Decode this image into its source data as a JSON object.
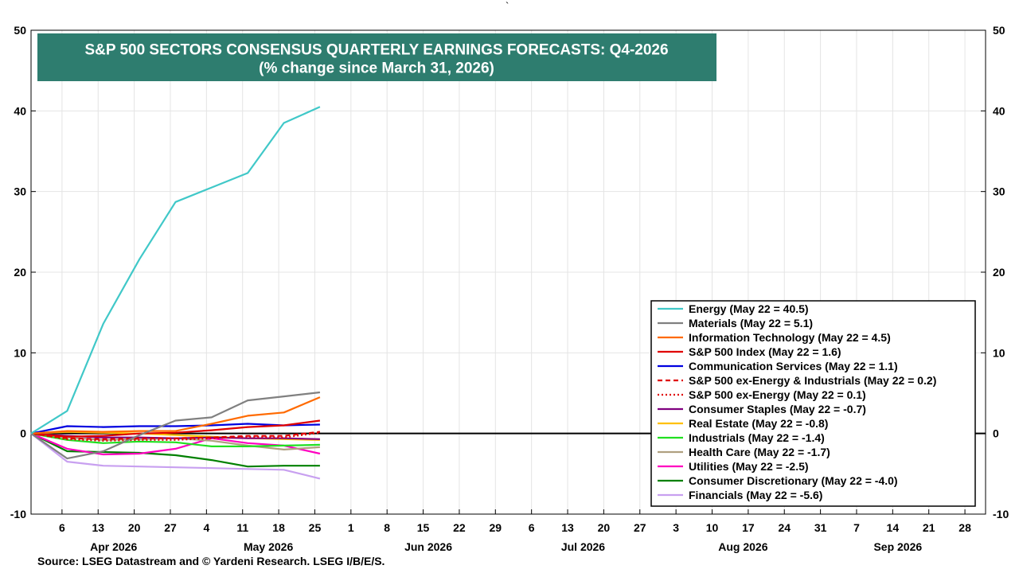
{
  "top_mark": "`",
  "source": "Source: LSEG Datastream and © Yardeni Research. LSEG I/B/E/S.",
  "chart_data": {
    "type": "line",
    "title": "S&P 500 SECTORS CONSENSUS QUARTERLY EARNINGS FORECASTS: Q4-2026",
    "subtitle": "(% change since March 31, 2026)",
    "xlabel": "",
    "ylabel": "",
    "ylim": [
      -10,
      50
    ],
    "yticks": [
      -10,
      0,
      10,
      20,
      30,
      40,
      50
    ],
    "xlim": [
      "2026-03-31",
      "2026-10-02"
    ],
    "x_tick_labels": [
      {
        "date": "2026-04-06",
        "label": "6"
      },
      {
        "date": "2026-04-13",
        "label": "13"
      },
      {
        "date": "2026-04-20",
        "label": "20"
      },
      {
        "date": "2026-04-27",
        "label": "27"
      },
      {
        "date": "2026-05-04",
        "label": "4"
      },
      {
        "date": "2026-05-11",
        "label": "11"
      },
      {
        "date": "2026-05-18",
        "label": "18"
      },
      {
        "date": "2026-05-25",
        "label": "25"
      },
      {
        "date": "2026-06-01",
        "label": "1"
      },
      {
        "date": "2026-06-08",
        "label": "8"
      },
      {
        "date": "2026-06-15",
        "label": "15"
      },
      {
        "date": "2026-06-22",
        "label": "22"
      },
      {
        "date": "2026-06-29",
        "label": "29"
      },
      {
        "date": "2026-07-06",
        "label": "6"
      },
      {
        "date": "2026-07-13",
        "label": "13"
      },
      {
        "date": "2026-07-20",
        "label": "20"
      },
      {
        "date": "2026-07-27",
        "label": "27"
      },
      {
        "date": "2026-08-03",
        "label": "3"
      },
      {
        "date": "2026-08-10",
        "label": "10"
      },
      {
        "date": "2026-08-17",
        "label": "17"
      },
      {
        "date": "2026-08-24",
        "label": "24"
      },
      {
        "date": "2026-08-31",
        "label": "31"
      },
      {
        "date": "2026-09-07",
        "label": "7"
      },
      {
        "date": "2026-09-14",
        "label": "14"
      },
      {
        "date": "2026-09-21",
        "label": "21"
      },
      {
        "date": "2026-09-28",
        "label": "28"
      }
    ],
    "month_labels": [
      {
        "date": "2026-04-16",
        "label": "Apr 2026"
      },
      {
        "date": "2026-05-16",
        "label": "May 2026"
      },
      {
        "date": "2026-06-16",
        "label": "Jun 2026"
      },
      {
        "date": "2026-07-16",
        "label": "Jul 2026"
      },
      {
        "date": "2026-08-16",
        "label": "Aug 2026"
      },
      {
        "date": "2026-09-15",
        "label": "Sep 2026"
      }
    ],
    "grid": true,
    "legend_position": "bottom-right",
    "x": [
      "2026-03-31",
      "2026-04-07",
      "2026-04-14",
      "2026-04-21",
      "2026-04-28",
      "2026-05-05",
      "2026-05-12",
      "2026-05-19",
      "2026-05-26"
    ],
    "series": [
      {
        "name": "Energy (May 22 = 40.5)",
        "color": "#40c8c8",
        "dash": "solid",
        "values": [
          0,
          2.8,
          13.6,
          21.6,
          28.7,
          30.5,
          32.3,
          38.5,
          40.5
        ]
      },
      {
        "name": "Materials (May 22 = 5.1)",
        "color": "#808080",
        "dash": "solid",
        "values": [
          0,
          -3.1,
          -2.2,
          -0.2,
          1.6,
          2.0,
          4.1,
          4.6,
          5.1
        ]
      },
      {
        "name": "Information Technology (May 22 = 4.5)",
        "color": "#ff6a00",
        "dash": "solid",
        "values": [
          0,
          0.3,
          0.2,
          0.3,
          0.3,
          1.2,
          2.2,
          2.6,
          4.5
        ]
      },
      {
        "name": "S&P 500 Index (May 22 = 1.6)",
        "color": "#e00000",
        "dash": "solid",
        "values": [
          0,
          -0.4,
          -0.3,
          0.0,
          0.1,
          0.4,
          0.8,
          1.0,
          1.6
        ]
      },
      {
        "name": "Communication Services (May 22 = 1.1)",
        "color": "#0000e0",
        "dash": "solid",
        "values": [
          0,
          0.9,
          0.8,
          0.9,
          0.9,
          1.0,
          1.2,
          1.0,
          1.1
        ]
      },
      {
        "name": "S&P 500 ex-Energy & Industrials (May 22 = 0.2)",
        "color": "#e00000",
        "dash": "dash",
        "values": [
          0,
          -0.6,
          -0.7,
          -0.6,
          -0.6,
          -0.5,
          -0.3,
          -0.3,
          0.2
        ]
      },
      {
        "name": "S&P 500 ex-Energy (May 22 = 0.1)",
        "color": "#e00000",
        "dash": "dot",
        "values": [
          0,
          -0.7,
          -0.9,
          -0.8,
          -0.8,
          -0.6,
          -0.4,
          -0.5,
          0.1
        ]
      },
      {
        "name": "Consumer Staples (May 22 = -0.7)",
        "color": "#800080",
        "dash": "solid",
        "values": [
          0,
          -0.3,
          -0.5,
          -0.5,
          -0.6,
          -0.5,
          -0.6,
          -0.6,
          -0.7
        ]
      },
      {
        "name": "Real Estate (May 22 = -0.8)",
        "color": "#ffc000",
        "dash": "solid",
        "values": [
          0,
          0.2,
          0.1,
          0.0,
          -0.2,
          -0.4,
          -0.6,
          -0.7,
          -0.8
        ]
      },
      {
        "name": "Industrials (May 22 = -1.4)",
        "color": "#20e020",
        "dash": "solid",
        "values": [
          0,
          -0.8,
          -1.2,
          -1.0,
          -1.1,
          -1.6,
          -1.6,
          -1.5,
          -1.4
        ]
      },
      {
        "name": "Health Care (May 22 = -1.7)",
        "color": "#b0a080",
        "dash": "solid",
        "values": [
          0,
          -0.5,
          -0.8,
          -0.7,
          -0.6,
          -0.9,
          -1.5,
          -2.0,
          -1.7
        ]
      },
      {
        "name": "Utilities (May 22 = -2.5)",
        "color": "#ff00c0",
        "dash": "solid",
        "values": [
          0,
          -1.9,
          -2.6,
          -2.5,
          -1.9,
          -0.6,
          -1.2,
          -1.5,
          -2.5
        ]
      },
      {
        "name": "Consumer Discretionary (May 22 = -4.0)",
        "color": "#008000",
        "dash": "solid",
        "values": [
          0,
          -2.2,
          -2.3,
          -2.4,
          -2.7,
          -3.3,
          -4.1,
          -4.0,
          -4.0
        ]
      },
      {
        "name": "Financials (May 22 = -5.6)",
        "color": "#c8a0f0",
        "dash": "solid",
        "values": [
          0,
          -3.5,
          -4.0,
          -4.1,
          -4.2,
          -4.3,
          -4.4,
          -4.5,
          -5.6
        ]
      }
    ]
  }
}
